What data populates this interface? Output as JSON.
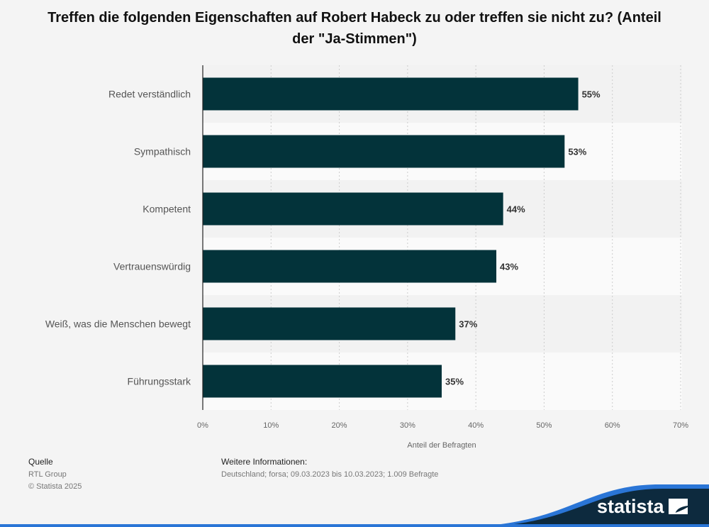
{
  "chart_data": {
    "type": "bar",
    "orientation": "horizontal",
    "title": "Treffen die folgenden Eigenschaften auf Robert Habeck zu oder treffen sie nicht zu? (Anteil der \"Ja-Stimmen\")",
    "categories": [
      "Redet verständlich",
      "Sympathisch",
      "Kompetent",
      "Vertrauenswürdig",
      "Weiß, was die Menschen bewegt",
      "Führungsstark"
    ],
    "values": [
      55,
      53,
      44,
      43,
      37,
      35
    ],
    "data_labels": [
      "55%",
      "53%",
      "44%",
      "43%",
      "37%",
      "35%"
    ],
    "xlabel": "Anteil der Befragten",
    "xlim": [
      0,
      70
    ],
    "x_ticks": [
      "0%",
      "10%",
      "20%",
      "30%",
      "40%",
      "50%",
      "60%",
      "70%"
    ],
    "grid": true,
    "bar_color": "#03333a"
  },
  "footer": {
    "source_heading": "Quelle",
    "source": "RTL Group",
    "copyright": "© Statista 2025",
    "info_heading": "Weitere Informationen:",
    "info": "Deutschland; forsa; 09.03.2023 bis 10.03.2023; 1.009 Befragte"
  },
  "logo": {
    "text": "statista",
    "dark": "#0d2a3e",
    "blue": "#2a75d6"
  }
}
